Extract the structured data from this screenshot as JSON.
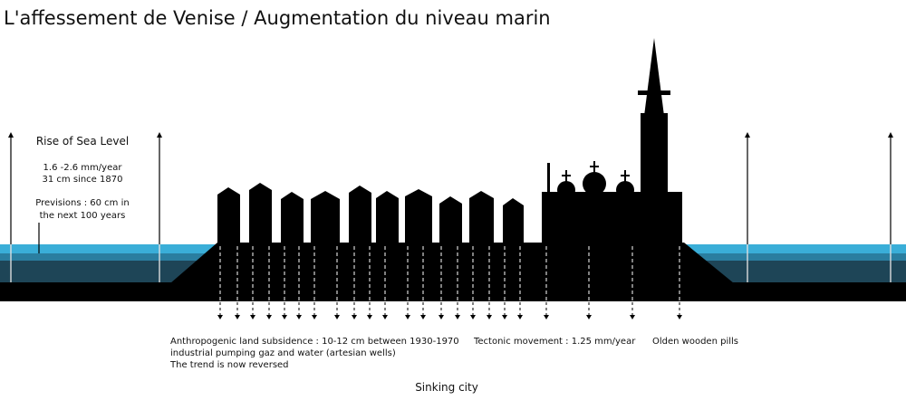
{
  "title": "L'affessement de Venise / Augmentation du niveau marin",
  "sea_level": {
    "title": "Rise of Sea Level",
    "lines": [
      "1.6 -2.6 mm/year",
      "31 cm since 1870",
      "Previsions : 60 cm in",
      "the next 100 years"
    ]
  },
  "annotations": {
    "subsidence": [
      "Anthropogenic land subsidence : 10-12 cm between 1930-1970",
      "industrial pumping gaz and water (artesian wells)",
      "The trend is now reversed"
    ],
    "tectonic": "Tectonic movement : 1.25 mm/year",
    "piles": "Olden wooden pills"
  },
  "caption": "Sinking city"
}
